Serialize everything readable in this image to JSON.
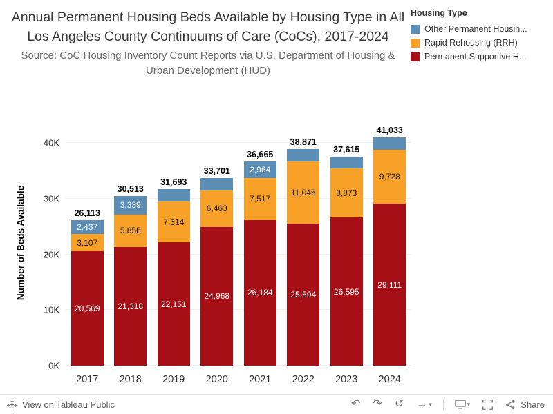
{
  "header": {
    "title": "Annual Permanent Housing Beds Available by Housing Type in All Los Angeles County Continuums of Care (CoCs), 2017-2024",
    "source": "Source: CoC Housing Inventory Count Reports via U.S. Department of Housing & Urban Development (HUD)"
  },
  "legend": {
    "title": "Housing Type",
    "items": [
      {
        "label": "Other Permanent Housin...",
        "color": "#5c8db5"
      },
      {
        "label": "Rapid Rehousing (RRH)",
        "color": "#f7a128"
      },
      {
        "label": "Permanent Supportive H...",
        "color": "#a50f15"
      }
    ]
  },
  "chart_data": {
    "type": "bar",
    "stacked": true,
    "title": "Annual Permanent Housing Beds Available by Housing Type in All Los Angeles County Continuums of Care (CoCs), 2017-2024",
    "xlabel": "",
    "ylabel": "Number of Beds Available",
    "ylim": [
      0,
      44000
    ],
    "grid": "faint-horizontal",
    "legend_position": "top-right",
    "categories": [
      "2017",
      "2018",
      "2019",
      "2020",
      "2021",
      "2022",
      "2023",
      "2024"
    ],
    "yticks": [
      {
        "value": 0,
        "label": "0K"
      },
      {
        "value": 10000,
        "label": "10K"
      },
      {
        "value": 20000,
        "label": "20K"
      },
      {
        "value": 30000,
        "label": "30K"
      },
      {
        "value": 40000,
        "label": "40K"
      }
    ],
    "totals": [
      26113,
      30513,
      31693,
      33701,
      36665,
      38871,
      37615,
      41033
    ],
    "total_labels": [
      "26,113",
      "30,513",
      "31,693",
      "33,701",
      "36,665",
      "38,871",
      "37,615",
      "41,033"
    ],
    "series": [
      {
        "key": "psh",
        "name": "Permanent Supportive H...",
        "color": "#a50f15",
        "label_color": "#ffffff",
        "values": [
          20569,
          21318,
          22151,
          24968,
          26184,
          25594,
          26595,
          29111
        ],
        "labels": [
          "20,569",
          "21,318",
          "22,151",
          "24,968",
          "26,184",
          "25,594",
          "26,595",
          "29,111"
        ]
      },
      {
        "key": "rrh",
        "name": "Rapid Rehousing (RRH)",
        "color": "#f7a128",
        "label_color": "#1a1a1a",
        "values": [
          3107,
          5856,
          7314,
          6463,
          7517,
          11046,
          8873,
          9728
        ],
        "labels": [
          "3,107",
          "5,856",
          "7,314",
          "6,463",
          "7,517",
          "11,046",
          "8,873",
          "9,728"
        ]
      },
      {
        "key": "oph",
        "name": "Other Permanent Housin...",
        "color": "#5c8db5",
        "label_color": "#ffffff",
        "values": [
          2437,
          3339,
          2228,
          2270,
          2964,
          2231,
          2147,
          2194
        ],
        "labels": [
          "2,437",
          "3,339",
          "",
          "",
          "2,964",
          "",
          "",
          ""
        ]
      }
    ]
  },
  "toolbar": {
    "view_label": "View on Tableau Public",
    "share_label": "Share"
  }
}
